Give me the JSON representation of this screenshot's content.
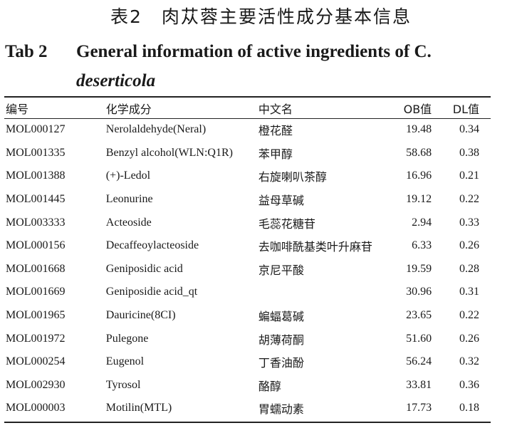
{
  "title_cn": "表2　肉苁蓉主要活性成分基本信息",
  "title_en": {
    "label": "Tab 2",
    "line1": "General information of active ingredients of C.",
    "line2": "deserticola"
  },
  "table": {
    "headers": {
      "id": "编号",
      "compound": "化学成分",
      "chinese_name": "中文名",
      "ob": "OB值",
      "dl": "DL值"
    },
    "rows": [
      {
        "id": "MOL000127",
        "compound": "Nerolaldehyde(Neral)",
        "chinese_name": "橙花醛",
        "ob": "19.48",
        "dl": "0.34"
      },
      {
        "id": "MOL001335",
        "compound": "Benzyl alcohol(WLN:Q1R)",
        "chinese_name": "苯甲醇",
        "ob": "58.68",
        "dl": "0.38"
      },
      {
        "id": "MOL001388",
        "compound": "(+)-Ledol",
        "chinese_name": "右旋喇叭茶醇",
        "ob": "16.96",
        "dl": "0.21"
      },
      {
        "id": "MOL001445",
        "compound": "Leonurine",
        "chinese_name": "益母草碱",
        "ob": "19.12",
        "dl": "0.22"
      },
      {
        "id": "MOL003333",
        "compound": "Acteoside",
        "chinese_name": "毛蕊花糖苷",
        "ob": "2.94",
        "dl": "0.33"
      },
      {
        "id": "MOL000156",
        "compound": "Decaffeoylacteoside",
        "chinese_name": "去咖啡酰基类叶升麻苷",
        "ob": "6.33",
        "dl": "0.26"
      },
      {
        "id": "MOL001668",
        "compound": "Geniposidic acid",
        "chinese_name": "京尼平酸",
        "ob": "19.59",
        "dl": "0.28"
      },
      {
        "id": "MOL001669",
        "compound": "Geniposidie acid_qt",
        "chinese_name": "",
        "ob": "30.96",
        "dl": "0.31"
      },
      {
        "id": "MOL001965",
        "compound": "Dauricine(8CI)",
        "chinese_name": "蝙蝠葛碱",
        "ob": "23.65",
        "dl": "0.22"
      },
      {
        "id": "MOL001972",
        "compound": "Pulegone",
        "chinese_name": "胡薄荷酮",
        "ob": "51.60",
        "dl": "0.26"
      },
      {
        "id": "MOL000254",
        "compound": "Eugenol",
        "chinese_name": "丁香油酚",
        "ob": "56.24",
        "dl": "0.32"
      },
      {
        "id": "MOL002930",
        "compound": "Tyrosol",
        "chinese_name": "酪醇",
        "ob": "33.81",
        "dl": "0.36"
      },
      {
        "id": "MOL000003",
        "compound": "Motilin(MTL)",
        "chinese_name": "胃蠕动素",
        "ob": "17.73",
        "dl": "0.18"
      }
    ]
  }
}
